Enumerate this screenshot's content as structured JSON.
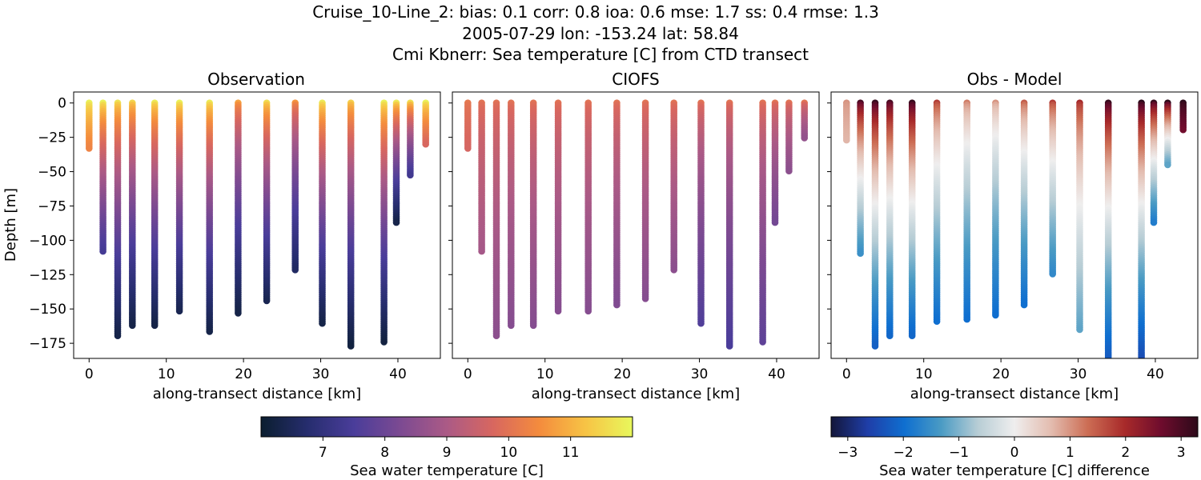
{
  "figure": {
    "title_lines": [
      "Cruise_10-Line_2: bias: 0.1  corr: 0.8  ioa: 0.6  mse: 1.7  ss: 0.4  rmse: 1.3",
      "2005-07-29 lon: -153.24 lat: 58.84",
      "Cmi Kbnerr: Sea temperature [C] from CTD transect"
    ]
  },
  "chart_data": [
    {
      "type": "scatter",
      "title": "Observation",
      "xlabel": "along-transect distance [km]",
      "ylabel": "Depth [m]",
      "xlim": [
        -2,
        45.5
      ],
      "ylim": [
        -186,
        8
      ],
      "xticks": [
        0,
        10,
        20,
        30,
        40
      ],
      "yticks": [
        0,
        -25,
        -50,
        -75,
        -100,
        -125,
        -150,
        -175
      ],
      "colorbar": "temperature",
      "profiles": [
        {
          "x": 0.0,
          "max_depth": 34,
          "top": 11.9,
          "bottom": 10.3
        },
        {
          "x": 1.8,
          "max_depth": 108,
          "top": 11.9,
          "bottom": 7.4
        },
        {
          "x": 3.7,
          "max_depth": 170,
          "top": 11.7,
          "bottom": 6.3
        },
        {
          "x": 5.6,
          "max_depth": 162,
          "top": 11.5,
          "bottom": 6.3
        },
        {
          "x": 8.5,
          "max_depth": 162,
          "top": 11.8,
          "bottom": 6.3
        },
        {
          "x": 11.7,
          "max_depth": 152,
          "top": 11.9,
          "bottom": 6.4
        },
        {
          "x": 15.6,
          "max_depth": 167,
          "top": 11.8,
          "bottom": 6.3
        },
        {
          "x": 19.3,
          "max_depth": 153,
          "top": 10.8,
          "bottom": 6.3
        },
        {
          "x": 23.0,
          "max_depth": 145,
          "top": 11.6,
          "bottom": 6.4
        },
        {
          "x": 26.7,
          "max_depth": 122,
          "top": 10.6,
          "bottom": 6.6
        },
        {
          "x": 30.2,
          "max_depth": 161,
          "top": 11.8,
          "bottom": 6.3
        },
        {
          "x": 33.9,
          "max_depth": 177,
          "top": 11.4,
          "bottom": 6.2
        },
        {
          "x": 38.2,
          "max_depth": 175,
          "top": 11.9,
          "bottom": 6.2
        },
        {
          "x": 39.8,
          "max_depth": 88,
          "top": 11.8,
          "bottom": 6.3
        },
        {
          "x": 41.6,
          "max_depth": 53,
          "top": 11.6,
          "bottom": 7.3
        },
        {
          "x": 43.6,
          "max_depth": 31,
          "top": 11.9,
          "bottom": 9.7
        }
      ]
    },
    {
      "type": "scatter",
      "title": "CIOFS",
      "xlabel": "along-transect distance [km]",
      "xlim": [
        -2,
        45.5
      ],
      "ylim": [
        -186,
        8
      ],
      "xticks": [
        0,
        10,
        20,
        30,
        40
      ],
      "colorbar": "temperature",
      "profiles": [
        {
          "x": 0.0,
          "max_depth": 33,
          "top": 10.1,
          "bottom": 9.7
        },
        {
          "x": 1.8,
          "max_depth": 108,
          "top": 10.0,
          "bottom": 8.9
        },
        {
          "x": 3.7,
          "max_depth": 170,
          "top": 10.0,
          "bottom": 8.5
        },
        {
          "x": 5.6,
          "max_depth": 162,
          "top": 10.0,
          "bottom": 8.4
        },
        {
          "x": 8.5,
          "max_depth": 162,
          "top": 10.0,
          "bottom": 8.4
        },
        {
          "x": 11.7,
          "max_depth": 152,
          "top": 10.0,
          "bottom": 8.4
        },
        {
          "x": 15.6,
          "max_depth": 152,
          "top": 10.0,
          "bottom": 8.4
        },
        {
          "x": 19.3,
          "max_depth": 148,
          "top": 10.0,
          "bottom": 8.3
        },
        {
          "x": 23.0,
          "max_depth": 143,
          "top": 10.0,
          "bottom": 8.4
        },
        {
          "x": 26.7,
          "max_depth": 122,
          "top": 10.0,
          "bottom": 8.5
        },
        {
          "x": 30.2,
          "max_depth": 161,
          "top": 10.0,
          "bottom": 7.6
        },
        {
          "x": 33.9,
          "max_depth": 177,
          "top": 10.0,
          "bottom": 7.5
        },
        {
          "x": 38.2,
          "max_depth": 175,
          "top": 10.0,
          "bottom": 7.8
        },
        {
          "x": 39.8,
          "max_depth": 88,
          "top": 10.0,
          "bottom": 8.1
        },
        {
          "x": 41.6,
          "max_depth": 50,
          "top": 10.0,
          "bottom": 8.5
        },
        {
          "x": 43.6,
          "max_depth": 26,
          "top": 10.0,
          "bottom": 8.6
        }
      ]
    },
    {
      "type": "scatter",
      "title": "Obs - Model",
      "xlabel": "along-transect distance [km]",
      "xlim": [
        -2,
        45.5
      ],
      "ylim": [
        -186,
        8
      ],
      "xticks": [
        0,
        10,
        20,
        30,
        40
      ],
      "colorbar": "difference",
      "profiles": [
        {
          "x": 0.0,
          "max_depth": 28,
          "top": 1.0,
          "bottom": 0.7
        },
        {
          "x": 1.8,
          "max_depth": 110,
          "top": 3.0,
          "bottom": -1.5
        },
        {
          "x": 3.7,
          "max_depth": 178,
          "top": 3.2,
          "bottom": -2.2
        },
        {
          "x": 5.6,
          "max_depth": 170,
          "top": 3.0,
          "bottom": -2.1
        },
        {
          "x": 8.5,
          "max_depth": 170,
          "top": 3.2,
          "bottom": -2.1
        },
        {
          "x": 11.7,
          "max_depth": 160,
          "top": 1.8,
          "bottom": -2.0
        },
        {
          "x": 15.6,
          "max_depth": 158,
          "top": 1.2,
          "bottom": -2.0
        },
        {
          "x": 19.3,
          "max_depth": 155,
          "top": 1.0,
          "bottom": -2.0
        },
        {
          "x": 23.0,
          "max_depth": 148,
          "top": 1.5,
          "bottom": -2.0
        },
        {
          "x": 26.7,
          "max_depth": 125,
          "top": 1.8,
          "bottom": -1.6
        },
        {
          "x": 30.2,
          "max_depth": 165,
          "top": 2.0,
          "bottom": -1.2
        },
        {
          "x": 33.9,
          "max_depth": 195,
          "top": 3.2,
          "bottom": -2.4
        },
        {
          "x": 38.2,
          "max_depth": 195,
          "top": 3.3,
          "bottom": -2.6
        },
        {
          "x": 39.8,
          "max_depth": 88,
          "top": 3.2,
          "bottom": -1.8
        },
        {
          "x": 41.6,
          "max_depth": 45,
          "top": 3.3,
          "bottom": -1.2
        },
        {
          "x": 43.6,
          "max_depth": 20,
          "top": 3.3,
          "bottom": 2.6
        }
      ]
    }
  ],
  "colorbars": {
    "temperature": {
      "label": "Sea water temperature [C]",
      "range": [
        6.0,
        12.0
      ],
      "ticks": [
        7,
        8,
        9,
        10,
        11
      ],
      "colors": [
        "#0b1e2f",
        "#262d6e",
        "#4a3d9a",
        "#7c4a92",
        "#ab5a86",
        "#d8675f",
        "#f48c3d",
        "#f7c445",
        "#e8f85c"
      ]
    },
    "difference": {
      "label": "Sea water temperature [C] difference",
      "range": [
        -3.3,
        3.3
      ],
      "ticks": [
        -3,
        -2,
        -1,
        0,
        1,
        2,
        3
      ],
      "colors": [
        "#13163a",
        "#1f3ea8",
        "#0f6fd0",
        "#4a9bc4",
        "#b7cdd5",
        "#efeeee",
        "#e3bcaf",
        "#cc6d54",
        "#a82a2a",
        "#6e0c2d",
        "#2d0a1a"
      ]
    }
  }
}
